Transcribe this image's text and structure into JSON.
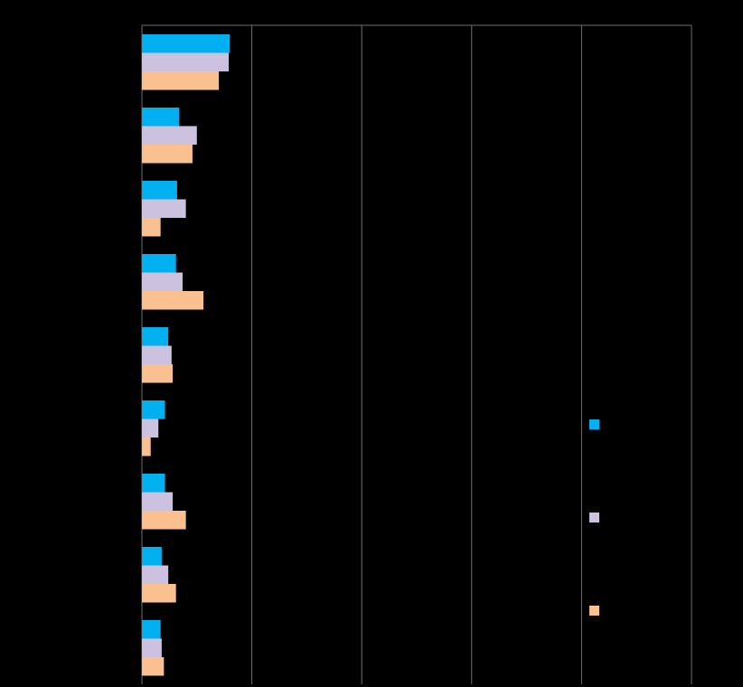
{
  "chart_data": {
    "type": "bar",
    "orientation": "horizontal",
    "background_color": "#000000",
    "grid": true,
    "grid_color": "#6e6e6e",
    "legend_position": "right",
    "xlim": [
      0,
      5
    ],
    "categories": [
      "",
      "",
      "",
      "",
      "",
      "",
      "",
      "",
      ""
    ],
    "series": [
      {
        "color": "#00b0f0",
        "values": [
          0.8,
          0.34,
          0.32,
          0.31,
          0.24,
          0.21,
          0.21,
          0.18,
          0.17
        ]
      },
      {
        "color": "#ccc2e0",
        "values": [
          0.79,
          0.5,
          0.4,
          0.37,
          0.27,
          0.15,
          0.28,
          0.24,
          0.18
        ]
      },
      {
        "color": "#fac090",
        "values": [
          0.7,
          0.46,
          0.17,
          0.56,
          0.28,
          0.08,
          0.4,
          0.31,
          0.2
        ]
      }
    ]
  }
}
